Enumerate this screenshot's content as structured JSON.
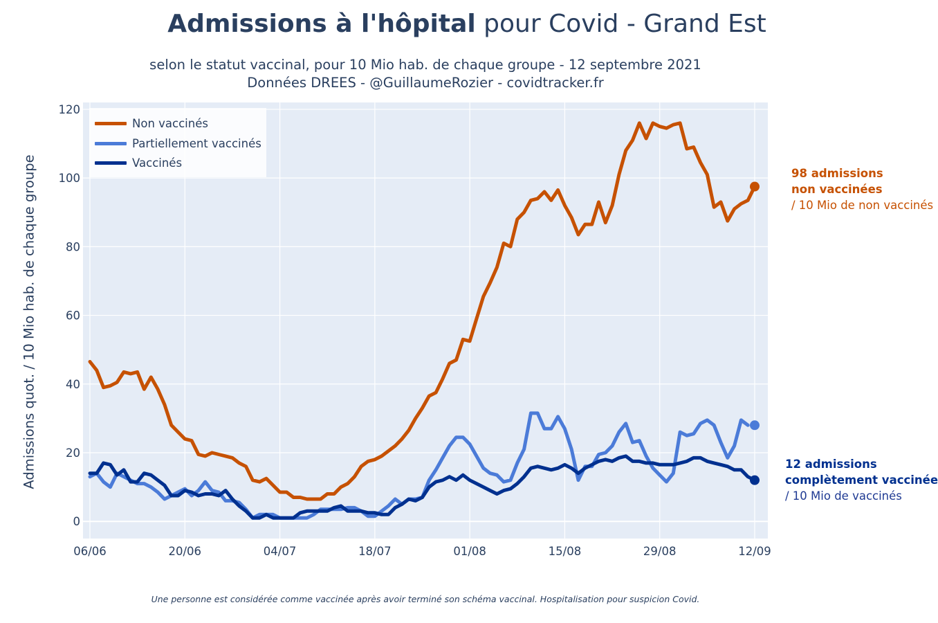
{
  "header": {
    "title_bold": "Admissions à l'hôpital",
    "title_rest": " pour Covid - Grand Est",
    "subtitle_line1": "selon le statut vaccinal, pour 10 Mio hab. de chaque groupe - 12 septembre 2021",
    "subtitle_line2": "Données DREES - @GuillaumeRozier - covidtracker.fr"
  },
  "annotations": {
    "non_vaccines": {
      "line1": "98 admissions",
      "line2": "non vaccinées",
      "line3": "/ 10 Mio de non vaccinés"
    },
    "vaccines": {
      "line1": "12 admissions",
      "line2": "complètement vaccinée",
      "line3": "/ 10 Mio de vaccinés"
    }
  },
  "footnote": "Une personne est considérée comme vaccinée après avoir terminé son schéma vaccinal. Hospitalisation pour suspicion Covid.",
  "colors": {
    "non_vaccines": "#c65102",
    "partiellement": "#4b7bd8",
    "vaccines": "#00308f",
    "plot_bg": "#e5ecf6",
    "grid": "#ffffff",
    "text": "#2a3f5f"
  },
  "chart_data": {
    "type": "line",
    "title": "Admissions à l'hôpital pour Covid - Grand Est",
    "ylabel": "Admissions quot. / 10 Mio hab. de chaque groupe",
    "xlabel": "",
    "x_start": "06/06",
    "x_end": "12/09",
    "x_ticks": [
      "06/06",
      "20/06",
      "04/07",
      "18/07",
      "01/08",
      "15/08",
      "29/08",
      "12/09"
    ],
    "y_ticks": [
      0,
      20,
      40,
      60,
      80,
      100,
      120
    ],
    "ylim": [
      -5,
      122
    ],
    "grid": true,
    "legend_position": "top-left",
    "series": [
      {
        "name": "Non vaccinés",
        "color": "#c65102",
        "values": [
          46.5,
          44,
          39,
          39.5,
          40.5,
          43.5,
          43,
          43.5,
          38.5,
          42,
          38.5,
          34,
          28,
          26,
          24,
          23.5,
          19.5,
          19,
          20,
          19.5,
          19,
          18.5,
          17,
          16,
          12,
          11.5,
          12.5,
          10.5,
          8.5,
          8.5,
          7,
          7,
          6.5,
          6.5,
          6.5,
          8,
          8,
          10,
          11,
          13,
          16,
          17.5,
          18,
          19,
          20.5,
          22,
          24,
          26.5,
          30,
          33,
          36.5,
          37.5,
          41.5,
          46,
          47,
          53,
          52.5,
          59,
          65.5,
          69.5,
          74,
          81,
          80,
          88,
          90,
          93.5,
          94,
          96,
          93.5,
          96.5,
          92,
          88.5,
          83.5,
          86.5,
          86.5,
          93,
          87,
          92,
          101,
          108,
          111,
          116,
          111.5,
          116,
          115,
          114.5,
          115.5,
          116,
          108.5,
          109,
          104.5,
          101,
          91.5,
          93,
          87.5,
          91,
          92.5,
          93.5,
          97.5
        ]
      },
      {
        "name": "Partiellement vaccinés",
        "color": "#4b7bd8",
        "values": [
          13,
          14,
          11.5,
          10,
          14,
          13,
          12,
          11,
          11,
          10,
          8.5,
          6.5,
          7.5,
          8.5,
          9.5,
          7.5,
          9,
          11.5,
          9,
          8.5,
          6,
          6,
          5.5,
          3.5,
          1,
          2,
          2,
          2,
          1,
          1,
          1,
          1,
          1,
          2,
          3.5,
          3.5,
          3.5,
          3.5,
          4,
          4,
          3,
          1.5,
          1.5,
          3,
          4.5,
          6.5,
          5,
          6.5,
          6.5,
          7,
          12,
          15,
          18.5,
          22,
          24.5,
          24.5,
          22.5,
          19,
          15.5,
          14,
          13.5,
          11.5,
          12,
          17,
          21,
          31.5,
          31.5,
          27,
          27,
          30.5,
          27,
          21,
          12,
          16,
          16,
          19.5,
          20,
          22,
          26,
          28.5,
          23,
          23.5,
          19,
          15.5,
          13.5,
          11.5,
          14,
          26,
          25,
          25.5,
          28.5,
          29.5,
          28,
          23,
          18.5,
          22,
          29.5,
          28
        ]
      },
      {
        "name": "Vaccinés",
        "color": "#00308f",
        "values": [
          14,
          14,
          17,
          16.5,
          13.5,
          15,
          11.5,
          11.5,
          14,
          13.5,
          12,
          10.5,
          7.5,
          7.5,
          9,
          8.5,
          7.5,
          8,
          8,
          7.5,
          9,
          6.5,
          4.5,
          3,
          1,
          1,
          2,
          1,
          1,
          1,
          1,
          2.5,
          3,
          3,
          3,
          3,
          4,
          4.5,
          3,
          3,
          3,
          2.5,
          2.5,
          2,
          2,
          4,
          5,
          6.5,
          6,
          7,
          10,
          11.5,
          12,
          13,
          12,
          13.5,
          12,
          11,
          10,
          9,
          8,
          9,
          9.5,
          11,
          13,
          15.5,
          16,
          15.5,
          15,
          15.5,
          16.5,
          15.5,
          14,
          15.5,
          16.5,
          17.5,
          18,
          17.5,
          18.5,
          19,
          17.5,
          17.5,
          17,
          17,
          16.5,
          16.5,
          16.5,
          17,
          17.5,
          18.5,
          18.5,
          17.5,
          17,
          16.5,
          16,
          15,
          15,
          13,
          12
        ]
      }
    ],
    "end_markers": [
      {
        "series": "Non vaccinés",
        "value": 97.5
      },
      {
        "series": "Partiellement vaccinés",
        "value": 28
      },
      {
        "series": "Vaccinés",
        "value": 12
      }
    ]
  }
}
